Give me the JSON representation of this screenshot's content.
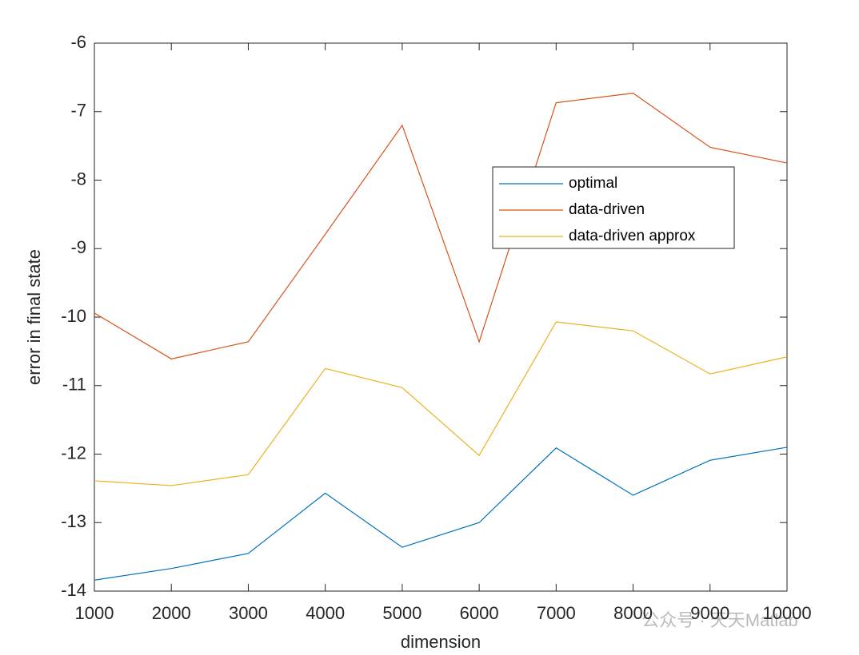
{
  "chart_data": {
    "type": "line",
    "x_label": "dimension",
    "y_label": "error in final state",
    "x": [
      1000,
      2000,
      3000,
      4000,
      5000,
      6000,
      7000,
      8000,
      9000,
      10000
    ],
    "series": [
      {
        "name": "optimal",
        "color": "#0072bd",
        "values": [
          -13.84,
          -13.67,
          -13.45,
          -12.57,
          -13.36,
          -13.0,
          -11.91,
          -12.6,
          -12.09,
          -11.9
        ]
      },
      {
        "name": "data-driven",
        "color": "#d95319",
        "values": [
          -9.94,
          -10.61,
          -10.36,
          -8.79,
          -7.2,
          -10.36,
          -6.87,
          -6.73,
          -7.52,
          -7.75
        ]
      },
      {
        "name": "data-driven approx",
        "color": "#edb120",
        "values": [
          -12.39,
          -12.46,
          -12.3,
          -10.75,
          -11.03,
          -12.02,
          -10.07,
          -10.2,
          -10.83,
          -10.58
        ]
      }
    ],
    "xlim": [
      1000,
      10000
    ],
    "xticks": [
      1000,
      2000,
      3000,
      4000,
      5000,
      6000,
      7000,
      8000,
      9000,
      10000
    ],
    "ylim": [
      -14,
      -6
    ],
    "yticks": [
      -14,
      -13,
      -12,
      -11,
      -10,
      -9,
      -8,
      -7,
      -6
    ],
    "grid": false,
    "watermark": "公众号 · 天天Matlab"
  }
}
